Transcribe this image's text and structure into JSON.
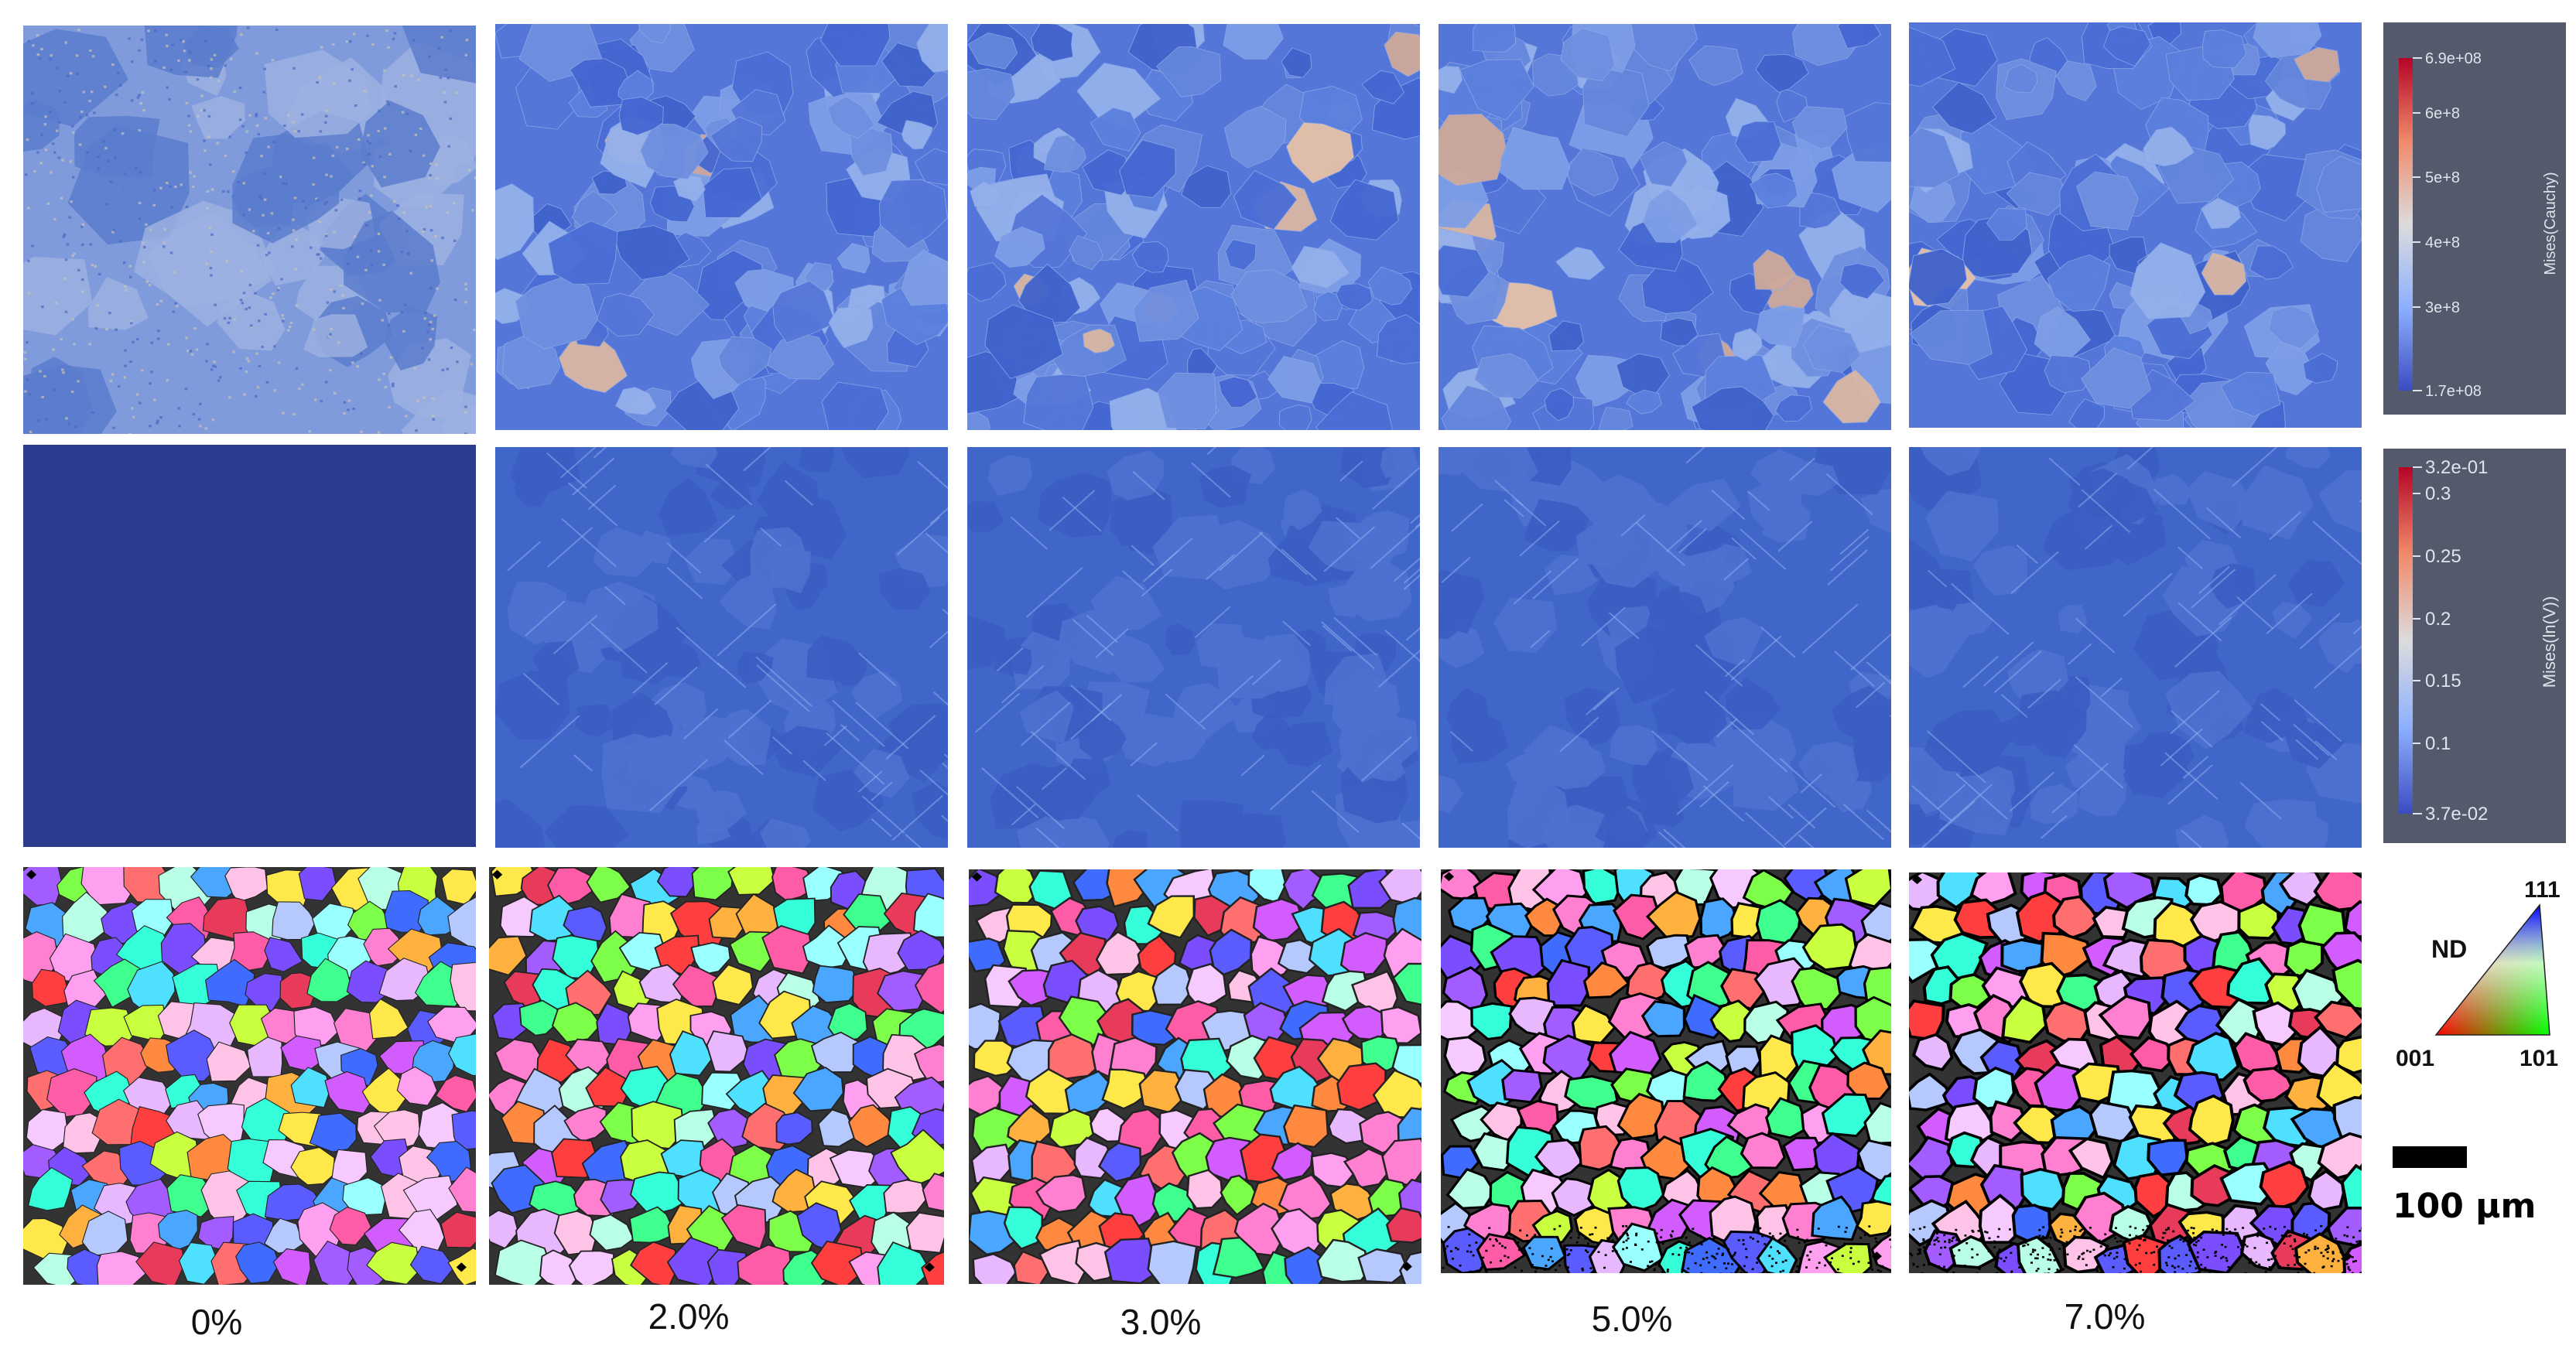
{
  "strain_labels": [
    "0%",
    "2.0%",
    "3.0%",
    "5.0%",
    "7.0%"
  ],
  "rows": [
    {
      "name": "mises-cauchy-stress-maps",
      "label": "Mises(Cauchy)"
    },
    {
      "name": "mises-ln-v-strain-maps",
      "label": "Mises(ln(V))"
    },
    {
      "name": "ebsd-ipf-maps",
      "label": ""
    }
  ],
  "colorbar_stress": {
    "title": "Mises(Cauchy)",
    "ticks": [
      "6.9e+08",
      "6e+8",
      "5e+8",
      "4e+8",
      "3e+8",
      "1.7e+08"
    ],
    "colors": {
      "high": "#b40426",
      "mid": "#dddddd",
      "low": "#3b4cc0"
    }
  },
  "colorbar_strain": {
    "title": "Mises(ln(V))",
    "ticks": [
      "3.2e-01",
      "0.3",
      "0.25",
      "0.2",
      "0.15",
      "0.1",
      "3.7e-02"
    ],
    "colors": {
      "high": "#b40426",
      "mid": "#dddddd",
      "low": "#3b4cc0"
    }
  },
  "ipf_legend": {
    "direction": "ND",
    "corners": {
      "top": "111",
      "left": "001",
      "right": "101"
    }
  },
  "scale_bar": {
    "label": "100 μm"
  }
}
